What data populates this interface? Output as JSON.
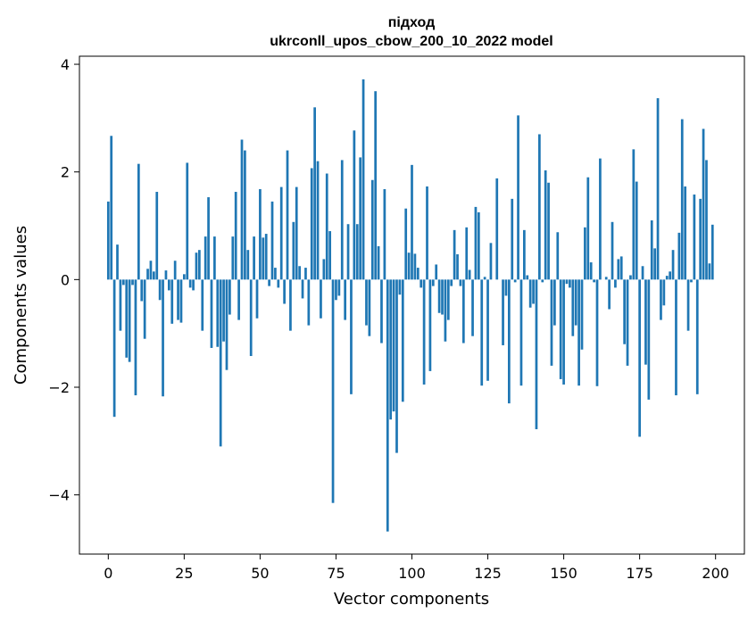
{
  "chart_data": {
    "type": "bar",
    "title_lines": [
      "підход",
      "ukrconll_upos_cbow_200_10_2022 model"
    ],
    "xlabel": "Vector components",
    "ylabel": "Components values",
    "xlim": [
      -9.5,
      209.5
    ],
    "ylim": [
      -5.1,
      4.15
    ],
    "xticks": [
      0,
      25,
      50,
      75,
      100,
      125,
      150,
      175,
      200
    ],
    "yticks": [
      -4,
      -2,
      0,
      2,
      4
    ],
    "ytick_labels": [
      "−4",
      "−2",
      "0",
      "2",
      "4"
    ],
    "grid": false,
    "color": "#1f77b4",
    "values": [
      1.45,
      2.67,
      -2.55,
      0.65,
      -0.95,
      -0.1,
      -1.45,
      -1.53,
      -0.1,
      -2.15,
      2.15,
      -0.4,
      -1.1,
      0.2,
      0.35,
      0.15,
      1.63,
      -0.38,
      -2.17,
      0.17,
      -0.2,
      -0.82,
      0.35,
      -0.75,
      -0.8,
      0.1,
      2.17,
      -0.15,
      -0.2,
      0.5,
      0.55,
      -0.95,
      0.8,
      1.53,
      -1.27,
      0.8,
      -1.25,
      -3.1,
      -1.15,
      -1.68,
      -0.65,
      0.8,
      1.63,
      -0.75,
      2.6,
      2.4,
      0.55,
      -1.42,
      0.8,
      -0.72,
      1.68,
      0.78,
      0.85,
      -0.12,
      1.45,
      0.22,
      -0.15,
      1.72,
      -0.45,
      2.4,
      -0.95,
      1.07,
      1.72,
      0.25,
      -0.35,
      0.22,
      -0.85,
      2.07,
      3.2,
      2.2,
      -0.72,
      0.38,
      1.97,
      0.9,
      -4.15,
      -0.38,
      -0.3,
      2.22,
      -0.75,
      1.03,
      -2.13,
      2.77,
      1.03,
      2.27,
      3.72,
      -0.85,
      -1.05,
      1.85,
      3.5,
      0.62,
      -1.18,
      1.68,
      -4.68,
      -2.6,
      -2.45,
      -3.22,
      -0.28,
      -2.27,
      1.32,
      0.5,
      2.13,
      0.48,
      0.22,
      -0.15,
      -1.95,
      1.73,
      -1.7,
      -0.12,
      0.28,
      -0.62,
      -0.65,
      -1.15,
      -0.75,
      -0.12,
      0.92,
      0.47,
      -0.12,
      -1.18,
      0.97,
      0.18,
      -1.05,
      1.35,
      1.25,
      -1.97,
      0.05,
      -1.88,
      0.68,
      0.0,
      1.88,
      0.0,
      -1.22,
      -0.3,
      -2.3,
      1.5,
      -0.05,
      3.05,
      -1.97,
      0.92,
      0.08,
      -0.52,
      -0.45,
      -2.78,
      2.7,
      -0.05,
      2.03,
      1.8,
      -1.6,
      -0.85,
      0.88,
      -1.85,
      -1.95,
      -0.08,
      -0.15,
      -1.05,
      -0.85,
      -1.97,
      -1.3,
      0.97,
      1.9,
      0.32,
      -0.05,
      -1.98,
      2.25,
      0.0,
      0.05,
      -0.55,
      1.07,
      -0.15,
      0.38,
      0.43,
      -1.2,
      -1.6,
      0.08,
      2.42,
      1.82,
      -2.92,
      0.25,
      -1.58,
      -2.23,
      1.1,
      0.58,
      3.37,
      -0.75,
      -0.48,
      0.07,
      0.15,
      0.55,
      -2.15,
      0.87,
      2.98,
      1.73,
      -0.95,
      -0.05,
      1.58,
      -2.13,
      1.5,
      2.8,
      2.22,
      0.3,
      1.02
    ]
  }
}
